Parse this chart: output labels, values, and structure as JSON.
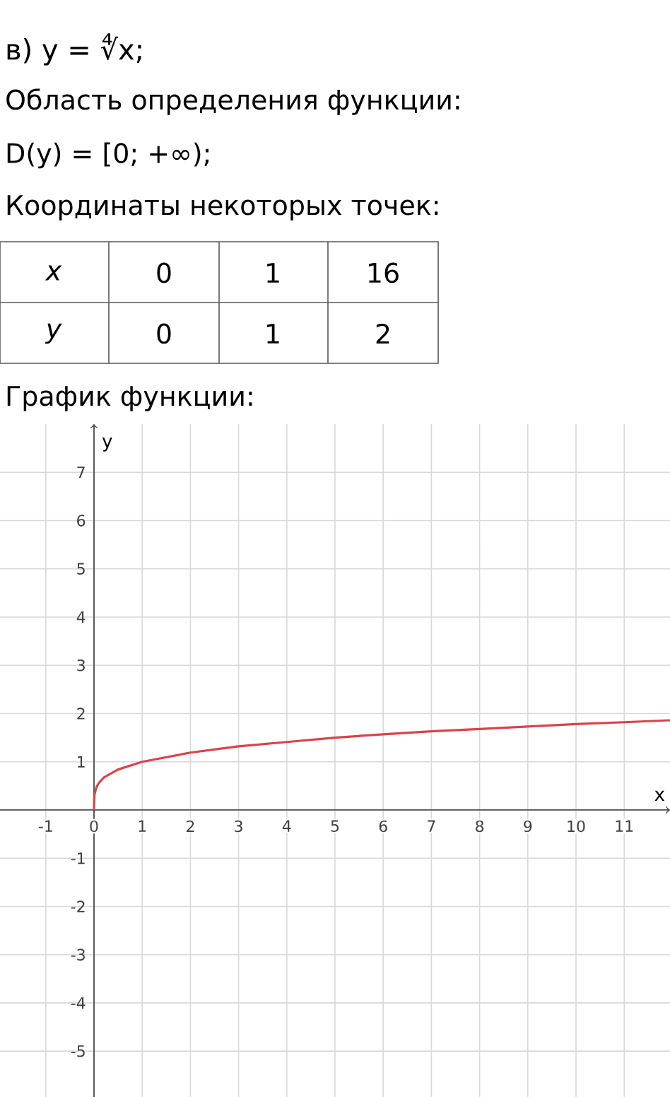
{
  "chart_data": {
    "type": "line",
    "title": "в) y = ∜x;",
    "subtitle": "Область определения функции:",
    "annotations": [
      "D(y) = [0; +∞);",
      "Координаты некоторых точек:",
      "x",
      "0",
      "1",
      "16",
      "y",
      "0",
      "1",
      "2",
      "График функции:"
    ],
    "xlabel": "x",
    "ylabel": "y",
    "series": [
      {
        "color": "#d9434a",
        "x": [
          0,
          0.01,
          0.05,
          0.1,
          0.2,
          0.5,
          1,
          2,
          3,
          4,
          5,
          6,
          7,
          8,
          9,
          10,
          11,
          11.95
        ],
        "values": [
          0,
          0.32,
          0.47,
          0.56,
          0.67,
          0.84,
          1,
          1.19,
          1.32,
          1.41,
          1.5,
          1.57,
          1.63,
          1.68,
          1.73,
          1.78,
          1.82,
          1.86
        ]
      }
    ],
    "xlim": [
      -1.95,
      11.95
    ],
    "ylim": [
      -5.95,
      8.0
    ],
    "xticks": [
      -1,
      0,
      1,
      2,
      3,
      4,
      5,
      6,
      7,
      8,
      9,
      10,
      11
    ],
    "yticks": [
      -5,
      -4,
      -3,
      -2,
      -1,
      {
        "value": 0,
        "label": null
      },
      1,
      2,
      3,
      4,
      5,
      6,
      7
    ],
    "grid": true,
    "marker": "none",
    "line_style": "solid"
  }
}
